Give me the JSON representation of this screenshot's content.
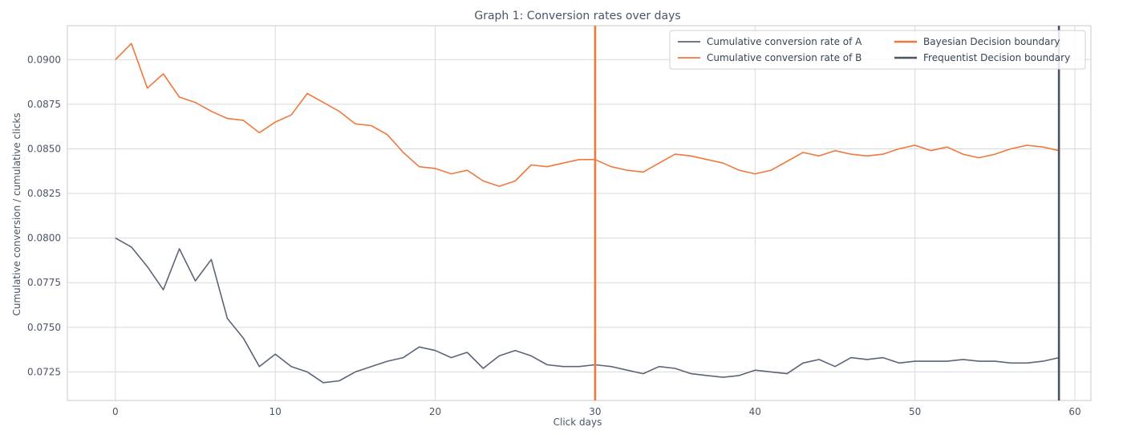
{
  "chart_data": {
    "type": "line",
    "title": "Graph 1: Conversion rates over days",
    "xlabel": "Click days",
    "ylabel": "Cumulative conversion / cumulative clicks",
    "xlim": [
      -3,
      61
    ],
    "ylim": [
      0.0709,
      0.0919
    ],
    "xticks": [
      0,
      10,
      20,
      30,
      40,
      50,
      60
    ],
    "xtick_labels": [
      "0",
      "10",
      "20",
      "30",
      "40",
      "50",
      "60"
    ],
    "yticks": [
      0.0725,
      0.075,
      0.0775,
      0.08,
      0.0825,
      0.085,
      0.0875,
      0.09
    ],
    "ytick_labels": [
      "0.0725",
      "0.0750",
      "0.0775",
      "0.0800",
      "0.0825",
      "0.0850",
      "0.0875",
      "0.0900"
    ],
    "grid": true,
    "legend_position": "top-right",
    "series": [
      {
        "name": "Cumulative conversion rate of A",
        "color": "#5b6577",
        "x": [
          0,
          1,
          2,
          3,
          4,
          5,
          6,
          7,
          8,
          9,
          10,
          11,
          12,
          13,
          14,
          15,
          16,
          17,
          18,
          19,
          20,
          21,
          22,
          23,
          24,
          25,
          26,
          27,
          28,
          29,
          30,
          31,
          32,
          33,
          34,
          35,
          36,
          37,
          38,
          39,
          40,
          41,
          42,
          43,
          44,
          45,
          46,
          47,
          48,
          49,
          50,
          51,
          52,
          53,
          54,
          55,
          56,
          57,
          58,
          59
        ],
        "y": [
          0.08,
          0.0795,
          0.0784,
          0.0771,
          0.0794,
          0.0776,
          0.0788,
          0.0755,
          0.0744,
          0.0728,
          0.0735,
          0.0728,
          0.0725,
          0.0719,
          0.072,
          0.0725,
          0.0728,
          0.0731,
          0.0733,
          0.0739,
          0.0737,
          0.0733,
          0.0736,
          0.0727,
          0.0734,
          0.0737,
          0.0734,
          0.0729,
          0.0728,
          0.0728,
          0.0729,
          0.0728,
          0.0726,
          0.0724,
          0.0728,
          0.0727,
          0.0724,
          0.0723,
          0.0722,
          0.0723,
          0.0726,
          0.0725,
          0.0724,
          0.073,
          0.0732,
          0.0728,
          0.0733,
          0.0732,
          0.0733,
          0.073,
          0.0731,
          0.0731,
          0.0731,
          0.0732,
          0.0731,
          0.0731,
          0.073,
          0.073,
          0.0731,
          0.0733
        ]
      },
      {
        "name": "Cumulative conversion rate of B",
        "color": "#f0783c",
        "x": [
          0,
          1,
          2,
          3,
          4,
          5,
          6,
          7,
          8,
          9,
          10,
          11,
          12,
          13,
          14,
          15,
          16,
          17,
          18,
          19,
          20,
          21,
          22,
          23,
          24,
          25,
          26,
          27,
          28,
          29,
          30,
          31,
          32,
          33,
          34,
          35,
          36,
          37,
          38,
          39,
          40,
          41,
          42,
          43,
          44,
          45,
          46,
          47,
          48,
          49,
          50,
          51,
          52,
          53,
          54,
          55,
          56,
          57,
          58,
          59
        ],
        "y": [
          0.09,
          0.0909,
          0.0884,
          0.0892,
          0.0879,
          0.0876,
          0.0871,
          0.0867,
          0.0866,
          0.0859,
          0.0865,
          0.0869,
          0.0881,
          0.0876,
          0.0871,
          0.0864,
          0.0863,
          0.0858,
          0.0848,
          0.084,
          0.0839,
          0.0836,
          0.0838,
          0.0832,
          0.0829,
          0.0832,
          0.0841,
          0.084,
          0.0842,
          0.0844,
          0.0844,
          0.084,
          0.0838,
          0.0837,
          0.0842,
          0.0847,
          0.0846,
          0.0844,
          0.0842,
          0.0838,
          0.0836,
          0.0838,
          0.0843,
          0.0848,
          0.0846,
          0.0849,
          0.0847,
          0.0846,
          0.0847,
          0.085,
          0.0852,
          0.0849,
          0.0851,
          0.0847,
          0.0845,
          0.0847,
          0.085,
          0.0852,
          0.0851,
          0.0849
        ]
      }
    ],
    "vlines": [
      {
        "name": "Bayesian Decision boundary",
        "x": 30,
        "color": "#f0783c"
      },
      {
        "name": "Frequentist Decision boundary",
        "x": 59,
        "color": "#4a5263"
      }
    ],
    "colors": {
      "grid": "#d9d9d9",
      "axis": "#c8c8c8",
      "text": "#4a5568",
      "legend_border": "#d0d0d0"
    }
  }
}
